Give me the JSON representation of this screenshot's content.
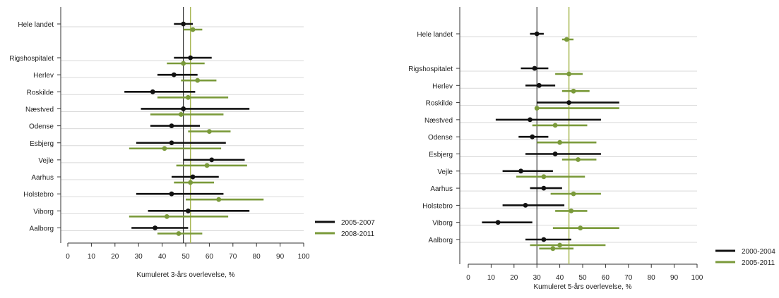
{
  "colors": {
    "series1": "#111111",
    "series2": "#7a9a3a",
    "ref_line": "#111111",
    "ref_line2": "#a9b855",
    "grid": "#d9d9d9",
    "axis": "#333333"
  },
  "chart_data": [
    {
      "type": "forest",
      "xlabel": "Kumuleret 3-års overlevelse, %",
      "xlim": [
        0,
        100
      ],
      "xticks": [
        0,
        10,
        20,
        30,
        40,
        50,
        60,
        70,
        80,
        90,
        100
      ],
      "reference_lines": [
        49,
        52
      ],
      "legend_position": "right",
      "groups": [
        {
          "label": "Hele landet",
          "values": [
            {
              "est": 49,
              "lo": 45,
              "hi": 53
            },
            {
              "est": 53,
              "lo": 49,
              "hi": 57
            }
          ]
        },
        {
          "label": "Rigshospitalet",
          "values": [
            {
              "est": 52,
              "lo": 45,
              "hi": 61
            },
            {
              "est": 49,
              "lo": 42,
              "hi": 58
            }
          ]
        },
        {
          "label": "Herlev",
          "values": [
            {
              "est": 45,
              "lo": 38,
              "hi": 55
            },
            {
              "est": 55,
              "lo": 48,
              "hi": 63
            }
          ]
        },
        {
          "label": "Roskilde",
          "values": [
            {
              "est": 36,
              "lo": 24,
              "hi": 54
            },
            {
              "est": 51,
              "lo": 38,
              "hi": 68
            }
          ]
        },
        {
          "label": "Næstved",
          "values": [
            {
              "est": 49,
              "lo": 31,
              "hi": 77
            },
            {
              "est": 48,
              "lo": 35,
              "hi": 66
            }
          ]
        },
        {
          "label": "Odense",
          "values": [
            {
              "est": 44,
              "lo": 35,
              "hi": 56
            },
            {
              "est": 60,
              "lo": 51,
              "hi": 69
            }
          ]
        },
        {
          "label": "Esbjerg",
          "values": [
            {
              "est": 44,
              "lo": 29,
              "hi": 67
            },
            {
              "est": 41,
              "lo": 26,
              "hi": 65
            }
          ]
        },
        {
          "label": "Vejle",
          "values": [
            {
              "est": 61,
              "lo": 49,
              "hi": 75
            },
            {
              "est": 59,
              "lo": 46,
              "hi": 76
            }
          ]
        },
        {
          "label": "Aarhus",
          "values": [
            {
              "est": 53,
              "lo": 44,
              "hi": 64
            },
            {
              "est": 52,
              "lo": 45,
              "hi": 62
            }
          ]
        },
        {
          "label": "Holstebro",
          "values": [
            {
              "est": 44,
              "lo": 29,
              "hi": 66
            },
            {
              "est": 64,
              "lo": 50,
              "hi": 83
            }
          ]
        },
        {
          "label": "Viborg",
          "values": [
            {
              "est": 51,
              "lo": 34,
              "hi": 77
            },
            {
              "est": 42,
              "lo": 26,
              "hi": 68
            }
          ]
        },
        {
          "label": "Aalborg",
          "values": [
            {
              "est": 37,
              "lo": 27,
              "hi": 51
            },
            {
              "est": 47,
              "lo": 38,
              "hi": 57
            }
          ]
        }
      ],
      "series": [
        {
          "name": "2005-2007"
        },
        {
          "name": "2008-2011"
        }
      ]
    },
    {
      "type": "forest",
      "xlabel": "Kumuleret 5-års overlevelse, %",
      "xlim": [
        0,
        100
      ],
      "xticks": [
        0,
        10,
        20,
        30,
        40,
        50,
        60,
        70,
        80,
        90,
        100
      ],
      "reference_lines": [
        30,
        44
      ],
      "legend_position": "right",
      "groups": [
        {
          "label": "Hele landet",
          "values": [
            {
              "est": 30,
              "lo": 27,
              "hi": 33
            },
            {
              "est": 43,
              "lo": 41,
              "hi": 46
            }
          ]
        },
        {
          "label": "Rigshospitalet",
          "values": [
            {
              "est": 29,
              "lo": 23,
              "hi": 35
            },
            {
              "est": 44,
              "lo": 38,
              "hi": 50
            }
          ]
        },
        {
          "label": "Herlev",
          "values": [
            {
              "est": 31,
              "lo": 25,
              "hi": 38
            },
            {
              "est": 46,
              "lo": 41,
              "hi": 53
            }
          ]
        },
        {
          "label": "Roskilde",
          "values": [
            {
              "est": 44,
              "lo": 30,
              "hi": 66
            },
            {
              "est": 30,
              "lo": 30,
              "hi": 66
            }
          ]
        },
        {
          "label": "Næstved",
          "values": [
            {
              "est": 27,
              "lo": 12,
              "hi": 58
            },
            {
              "est": 38,
              "lo": 28,
              "hi": 52
            }
          ]
        },
        {
          "label": "Odense",
          "values": [
            {
              "est": 28,
              "lo": 22,
              "hi": 35
            },
            {
              "est": 40,
              "lo": 30,
              "hi": 56
            }
          ]
        },
        {
          "label": "Esbjerg",
          "values": [
            {
              "est": 38,
              "lo": 25,
              "hi": 58
            },
            {
              "est": 48,
              "lo": 41,
              "hi": 56
            }
          ]
        },
        {
          "label": "Vejle",
          "values": [
            {
              "est": 23,
              "lo": 15,
              "hi": 37
            },
            {
              "est": 33,
              "lo": 21,
              "hi": 51
            }
          ]
        },
        {
          "label": "Aarhus",
          "values": [
            {
              "est": 33,
              "lo": 27,
              "hi": 41
            },
            {
              "est": 46,
              "lo": 36,
              "hi": 58
            }
          ]
        },
        {
          "label": "Holstebro",
          "values": [
            {
              "est": 25,
              "lo": 15,
              "hi": 42
            },
            {
              "est": 45,
              "lo": 38,
              "hi": 52
            }
          ]
        },
        {
          "label": "Viborg",
          "values": [
            {
              "est": 13,
              "lo": 6,
              "hi": 28
            },
            {
              "est": 49,
              "lo": 37,
              "hi": 66
            }
          ]
        },
        {
          "label": "Aalborg",
          "values": [
            {
              "est": 33,
              "lo": 25,
              "hi": 45
            },
            {
              "est": 40,
              "lo": 27,
              "hi": 60
            }
          ]
        }
      ],
      "extra_point": {
        "series": 1,
        "est": 37,
        "lo": 31,
        "hi": 46
      },
      "series": [
        {
          "name": "2000-2004"
        },
        {
          "name": "2005-2011"
        }
      ]
    }
  ]
}
